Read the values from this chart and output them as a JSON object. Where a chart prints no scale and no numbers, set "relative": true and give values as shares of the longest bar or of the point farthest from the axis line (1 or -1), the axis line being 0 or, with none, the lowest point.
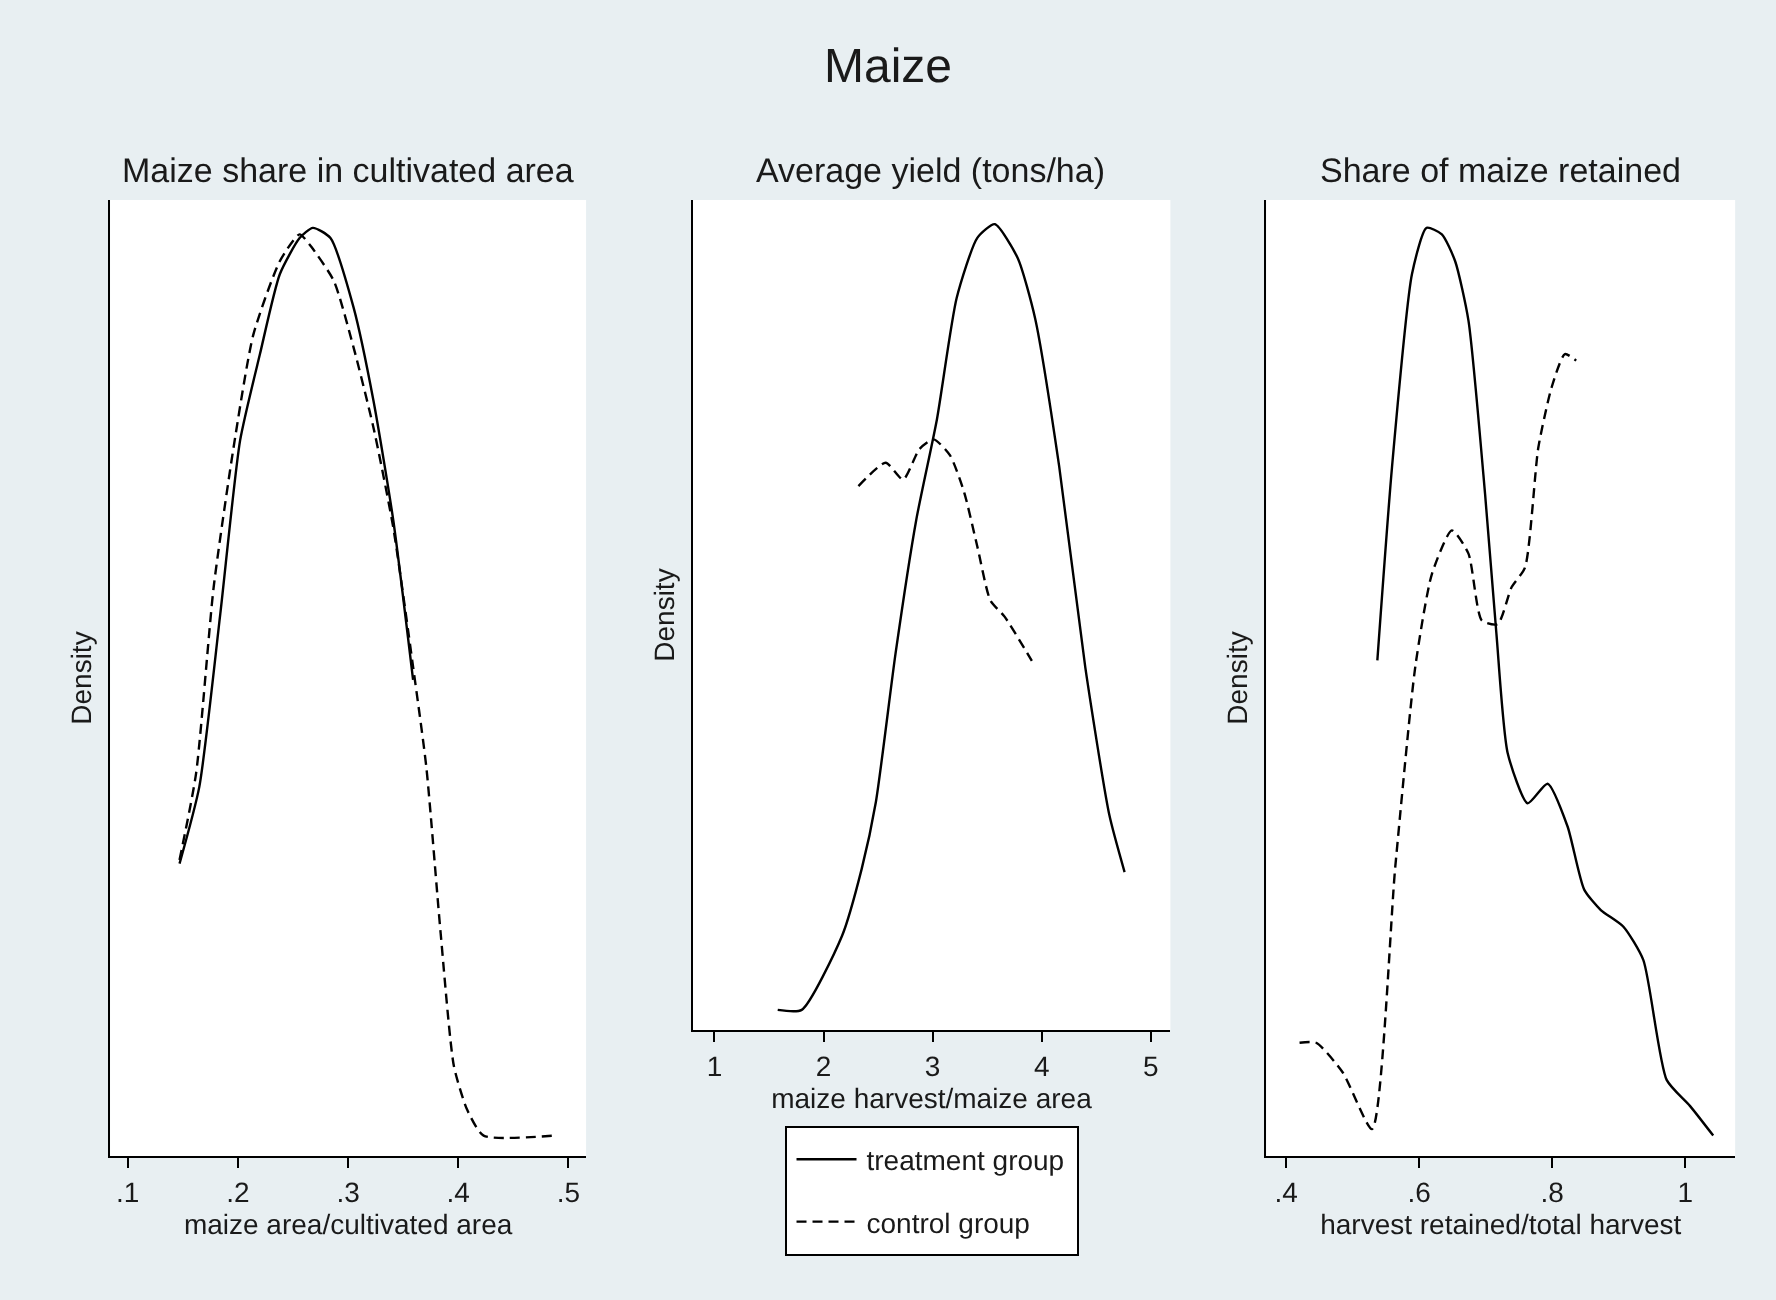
{
  "chart_data": [
    {
      "type": "line",
      "title": "Maize share in cultivated area",
      "annotations": [
        "Maize"
      ],
      "xlabel": "maize area/cultivated area",
      "ylabel": "Density",
      "relative": true,
      "grid": false,
      "marker": "none",
      "xlim": [
        0.084,
        0.516
      ],
      "xticks": [
        {
          "value": 0.1,
          "label": ".1"
        },
        {
          "value": 0.2,
          "label": ".2"
        },
        {
          "value": 0.3,
          "label": ".3"
        },
        {
          "value": 0.4,
          "label": ".4"
        },
        {
          "value": 0.5,
          "label": ".5"
        }
      ],
      "series": [
        {
          "color": "#000000",
          "line_style": "solid",
          "x": [
            0.147,
            0.165,
            0.184,
            0.202,
            0.22,
            0.238,
            0.256,
            0.268,
            0.284,
            0.305,
            0.323,
            0.341,
            0.359
          ],
          "values": [
            0.315,
            0.398,
            0.584,
            0.771,
            0.864,
            0.95,
            0.989,
            1.0,
            0.989,
            0.914,
            0.814,
            0.685,
            0.513
          ]
        },
        {
          "color": "#000000",
          "line_style": "dashed",
          "x": [
            0.147,
            0.162,
            0.178,
            0.196,
            0.214,
            0.238,
            0.256,
            0.265,
            0.287,
            0.305,
            0.323,
            0.341,
            0.359,
            0.371,
            0.384,
            0.396,
            0.408,
            0.423,
            0.487
          ],
          "values": [
            0.319,
            0.412,
            0.613,
            0.763,
            0.885,
            0.964,
            0.993,
            0.982,
            0.943,
            0.871,
            0.785,
            0.677,
            0.527,
            0.419,
            0.24,
            0.097,
            0.05,
            0.022,
            0.022
          ]
        }
      ]
    },
    {
      "type": "line",
      "title": "Average yield (tons/ha)",
      "xlabel": "maize harvest/maize area",
      "ylabel": "Density",
      "relative": true,
      "grid": false,
      "legend": "bottom",
      "marker": "none",
      "xlim": [
        0.8,
        5.18
      ],
      "xticks": [
        1,
        2,
        3,
        4,
        5
      ],
      "series": [
        {
          "name": "treatment group",
          "color": "#000000",
          "line_style": "solid",
          "x": [
            1.58,
            1.8,
            2.17,
            2.35,
            2.48,
            2.66,
            2.85,
            3.04,
            3.22,
            3.41,
            3.57,
            3.78,
            3.94,
            4.16,
            4.4,
            4.62,
            4.76
          ],
          "values": [
            0.025,
            0.025,
            0.117,
            0.2,
            0.283,
            0.467,
            0.633,
            0.758,
            0.908,
            0.983,
            1.0,
            0.958,
            0.883,
            0.7,
            0.45,
            0.267,
            0.196
          ]
        },
        {
          "name": "control group",
          "color": "#000000",
          "line_style": "dashed",
          "x": [
            2.32,
            2.57,
            2.73,
            2.88,
            3.01,
            3.16,
            3.29,
            3.41,
            3.53,
            3.66,
            3.91
          ],
          "values": [
            0.675,
            0.704,
            0.683,
            0.721,
            0.733,
            0.713,
            0.667,
            0.6,
            0.533,
            0.513,
            0.458
          ]
        }
      ]
    },
    {
      "type": "line",
      "title": "Share of maize retained",
      "xlabel": "harvest retained/total harvest",
      "ylabel": "Density",
      "relative": true,
      "grid": false,
      "marker": "none",
      "xlim": [
        0.37,
        1.075
      ],
      "xticks": [
        {
          "value": 0.4,
          "label": ".4"
        },
        {
          "value": 0.6,
          "label": ".6"
        },
        {
          "value": 0.8,
          "label": ".8"
        },
        1
      ],
      "series": [
        {
          "color": "#000000",
          "line_style": "solid",
          "x": [
            0.537,
            0.559,
            0.589,
            0.611,
            0.634,
            0.654,
            0.674,
            0.699,
            0.716,
            0.733,
            0.763,
            0.793,
            0.823,
            0.848,
            0.873,
            0.907,
            0.937,
            0.972,
            1.007,
            1.042
          ],
          "values": [
            0.534,
            0.742,
            0.95,
            1.0,
            0.993,
            0.964,
            0.9,
            0.713,
            0.563,
            0.434,
            0.38,
            0.401,
            0.355,
            0.287,
            0.265,
            0.247,
            0.211,
            0.082,
            0.054,
            0.022
          ]
        },
        {
          "color": "#000000",
          "line_style": "dashed",
          "x": [
            0.42,
            0.445,
            0.485,
            0.529,
            0.564,
            0.594,
            0.619,
            0.649,
            0.674,
            0.694,
            0.718,
            0.739,
            0.759,
            0.779,
            0.799,
            0.819,
            0.836
          ],
          "values": [
            0.122,
            0.122,
            0.09,
            0.029,
            0.312,
            0.527,
            0.627,
            0.674,
            0.649,
            0.577,
            0.573,
            0.613,
            0.634,
            0.763,
            0.828,
            0.864,
            0.857
          ]
        }
      ]
    }
  ]
}
